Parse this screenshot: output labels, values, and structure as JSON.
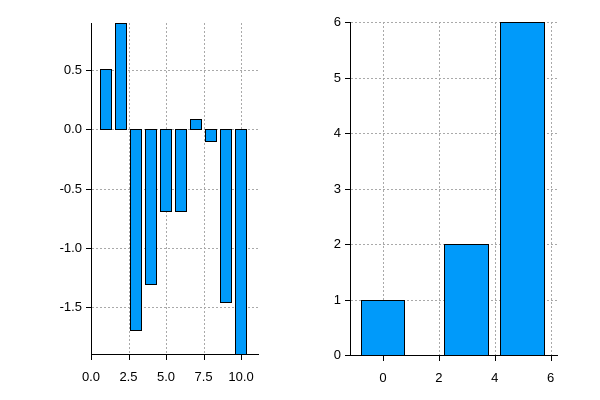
{
  "figure": {
    "background": "#FFFFFF"
  },
  "colors": {
    "bar_fill": "#009AFA",
    "bar_border": "#000000",
    "grid": "#A9A9A9",
    "axis": "#000000",
    "tick_label": "#000000"
  },
  "chart_data": [
    {
      "type": "bar",
      "title": "",
      "xlabel": "",
      "ylabel": "",
      "x": [
        1,
        2,
        3,
        4,
        5,
        6,
        7,
        8,
        9,
        10
      ],
      "values": [
        0.51,
        0.9,
        -1.7,
        -1.31,
        -0.69,
        -0.69,
        0.09,
        -0.1,
        -1.46,
        -2.0
      ],
      "bar_width": 0.8,
      "xlim": [
        0,
        11.13
      ],
      "ylim": [
        -1.9,
        0.9
      ],
      "xticks": {
        "values": [
          0,
          2.5,
          5,
          7.5,
          10
        ],
        "labels": [
          "0.0",
          "2.5",
          "5.0",
          "7.5",
          "10.0"
        ]
      },
      "yticks": {
        "values": [
          0.5,
          0,
          -0.5,
          -1,
          -1.5
        ],
        "labels": [
          "0.5",
          "0.0",
          "-0.5",
          "-1.0",
          "-1.5"
        ]
      },
      "grid": true,
      "legend": false,
      "notes": "last bar (x=10) extends below the visible axis range and is clipped at the bottom edge"
    },
    {
      "type": "bar",
      "title": "",
      "xlabel": "",
      "ylabel": "",
      "x": [
        0,
        3,
        5
      ],
      "values": [
        1,
        2,
        6
      ],
      "bar_width": 1.6,
      "xlim": [
        -1.18,
        6.23
      ],
      "ylim": [
        0,
        6
      ],
      "xticks": {
        "values": [
          0,
          2,
          4,
          6
        ],
        "labels": [
          "0",
          "2",
          "4",
          "6"
        ]
      },
      "yticks": {
        "values": [
          0,
          1,
          2,
          3,
          4,
          5,
          6
        ],
        "labels": [
          "0",
          "1",
          "2",
          "3",
          "4",
          "5",
          "6"
        ]
      },
      "grid": true,
      "legend": false
    }
  ]
}
